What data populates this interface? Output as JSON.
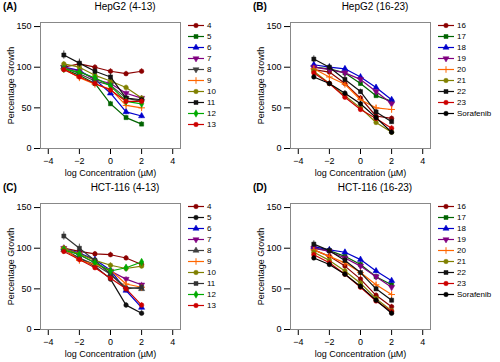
{
  "chart_data": [
    {
      "type": "line",
      "title": "HepG2 (4-13)",
      "annotation": "(A)",
      "xlabel": "log Concentration (µM)",
      "ylabel": "Percentage Growth",
      "x": [
        -3,
        -2,
        -1,
        0,
        1,
        2
      ],
      "xlim": [
        -4.5,
        4.5
      ],
      "ylim": [
        0,
        155
      ],
      "xticks": [
        -4,
        -2,
        0,
        2,
        4
      ],
      "yticks": [
        0,
        50,
        100,
        150
      ],
      "legend": "right",
      "series": [
        {
          "name": "4",
          "color": "#8B0000",
          "marker": "circle",
          "values": [
            100,
            104,
            100,
            95,
            92,
            95
          ],
          "yerr": [
            3,
            4,
            3,
            3,
            3,
            3
          ]
        },
        {
          "name": "5",
          "color": "#006400",
          "marker": "square",
          "values": [
            98,
            90,
            80,
            55,
            38,
            30
          ],
          "yerr": [
            3,
            3,
            4,
            3,
            3,
            3
          ]
        },
        {
          "name": "6",
          "color": "#0000CC",
          "marker": "triangle-up",
          "values": [
            100,
            96,
            85,
            68,
            45,
            40
          ],
          "yerr": [
            3,
            3,
            3,
            3,
            3,
            3
          ]
        },
        {
          "name": "7",
          "color": "#800080",
          "marker": "triangle-down",
          "values": [
            100,
            95,
            85,
            80,
            68,
            62
          ],
          "yerr": [
            3,
            3,
            3,
            3,
            3,
            3
          ]
        },
        {
          "name": "8",
          "color": "#404040",
          "marker": "triangle-down",
          "values": [
            100,
            92,
            83,
            78,
            62,
            58
          ],
          "yerr": [
            3,
            3,
            3,
            3,
            3,
            3
          ]
        },
        {
          "name": "9",
          "color": "#FF6600",
          "marker": "plus",
          "values": [
            98,
            87,
            79,
            73,
            53,
            50
          ],
          "yerr": [
            3,
            3,
            3,
            3,
            3,
            3
          ]
        },
        {
          "name": "10",
          "color": "#808000",
          "marker": "circle",
          "values": [
            104,
            100,
            90,
            83,
            75,
            62
          ],
          "yerr": [
            3,
            3,
            3,
            3,
            3,
            3
          ]
        },
        {
          "name": "11",
          "color": "#111111",
          "marker": "square",
          "values": [
            115,
            105,
            95,
            88,
            62,
            60
          ],
          "yerr": [
            5,
            5,
            4,
            4,
            3,
            3
          ]
        },
        {
          "name": "12",
          "color": "#00AA00",
          "marker": "diamond",
          "values": [
            98,
            94,
            87,
            77,
            58,
            55
          ],
          "yerr": [
            3,
            3,
            3,
            3,
            3,
            3
          ]
        },
        {
          "name": "13",
          "color": "#CC0000",
          "marker": "circle",
          "values": [
            97,
            88,
            80,
            72,
            58,
            58
          ],
          "yerr": [
            3,
            3,
            3,
            3,
            3,
            3
          ]
        }
      ]
    },
    {
      "type": "line",
      "title": "HepG2 (16-23)",
      "annotation": "(B)",
      "xlabel": "log Concentration (µM)",
      "ylabel": "Percentage Growth",
      "x": [
        -3,
        -2,
        -1,
        0,
        1,
        2
      ],
      "xlim": [
        -4.5,
        4.5
      ],
      "ylim": [
        0,
        155
      ],
      "xticks": [
        -4,
        -2,
        0,
        2,
        4
      ],
      "yticks": [
        0,
        50,
        100,
        150
      ],
      "legend": "right",
      "series": [
        {
          "name": "16",
          "color": "#8B0000",
          "marker": "circle",
          "values": [
            97,
            94,
            80,
            62,
            40,
            37
          ],
          "yerr": [
            3,
            3,
            3,
            3,
            3,
            3
          ]
        },
        {
          "name": "17",
          "color": "#006400",
          "marker": "square",
          "values": [
            100,
            98,
            93,
            80,
            65,
            58
          ],
          "yerr": [
            3,
            3,
            3,
            3,
            3,
            3
          ]
        },
        {
          "name": "18",
          "color": "#0000CC",
          "marker": "triangle-up",
          "values": [
            103,
            100,
            98,
            88,
            75,
            60
          ],
          "yerr": [
            3,
            3,
            3,
            3,
            3,
            3
          ]
        },
        {
          "name": "19",
          "color": "#800080",
          "marker": "triangle-down",
          "values": [
            100,
            97,
            93,
            85,
            70,
            55
          ],
          "yerr": [
            3,
            3,
            3,
            3,
            3,
            3
          ]
        },
        {
          "name": "20",
          "color": "#FF6600",
          "marker": "plus",
          "values": [
            98,
            88,
            79,
            60,
            50,
            48
          ],
          "yerr": [
            3,
            3,
            3,
            3,
            3,
            3
          ]
        },
        {
          "name": "21",
          "color": "#808000",
          "marker": "circle",
          "values": [
            95,
            80,
            65,
            50,
            32,
            20
          ],
          "yerr": [
            3,
            3,
            3,
            3,
            3,
            3
          ]
        },
        {
          "name": "22",
          "color": "#111111",
          "marker": "square",
          "values": [
            110,
            100,
            85,
            70,
            45,
            33
          ],
          "yerr": [
            4,
            4,
            4,
            3,
            3,
            3
          ]
        },
        {
          "name": "23",
          "color": "#CC0000",
          "marker": "circle",
          "values": [
            93,
            80,
            63,
            48,
            37,
            25
          ],
          "yerr": [
            3,
            3,
            3,
            3,
            3,
            3
          ]
        },
        {
          "name": "Sorafenib",
          "color": "#000000",
          "marker": "circle",
          "values": [
            88,
            80,
            68,
            55,
            38,
            20
          ],
          "yerr": [
            3,
            3,
            3,
            3,
            3,
            3
          ]
        }
      ]
    },
    {
      "type": "line",
      "title": "HCT-116 (4-13)",
      "annotation": "(C)",
      "xlabel": "log Concentration (µM)",
      "ylabel": "Percentage Growth",
      "x": [
        -3,
        -2,
        -1,
        0,
        1,
        2
      ],
      "xlim": [
        -4.5,
        4.5
      ],
      "ylim": [
        0,
        155
      ],
      "xticks": [
        -4,
        -2,
        0,
        2,
        4
      ],
      "yticks": [
        0,
        50,
        100,
        150
      ],
      "legend": "right",
      "series": [
        {
          "name": "4",
          "color": "#8B0000",
          "marker": "circle",
          "values": [
            100,
            96,
            93,
            92,
            88,
            80
          ],
          "yerr": [
            3,
            3,
            3,
            3,
            3,
            3
          ]
        },
        {
          "name": "5",
          "color": "#111111",
          "marker": "circle",
          "values": [
            98,
            88,
            78,
            62,
            30,
            20
          ],
          "yerr": [
            3,
            3,
            3,
            3,
            3,
            3
          ]
        },
        {
          "name": "6",
          "color": "#0000CC",
          "marker": "triangle-up",
          "values": [
            100,
            94,
            86,
            73,
            48,
            27
          ],
          "yerr": [
            3,
            3,
            3,
            3,
            3,
            3
          ]
        },
        {
          "name": "7",
          "color": "#800080",
          "marker": "triangle-down",
          "values": [
            100,
            92,
            82,
            72,
            62,
            55
          ],
          "yerr": [
            3,
            3,
            3,
            3,
            3,
            3
          ]
        },
        {
          "name": "8",
          "color": "#404040",
          "marker": "triangle-up",
          "values": [
            98,
            88,
            80,
            68,
            52,
            50
          ],
          "yerr": [
            3,
            3,
            3,
            3,
            3,
            3
          ]
        },
        {
          "name": "9",
          "color": "#FF6600",
          "marker": "plus",
          "values": [
            100,
            85,
            80,
            73,
            56,
            52
          ],
          "yerr": [
            3,
            3,
            3,
            3,
            3,
            3
          ]
        },
        {
          "name": "10",
          "color": "#808000",
          "marker": "circle",
          "values": [
            100,
            93,
            85,
            79,
            75,
            78
          ],
          "yerr": [
            3,
            3,
            3,
            3,
            3,
            3
          ]
        },
        {
          "name": "11",
          "color": "#333333",
          "marker": "square",
          "values": [
            115,
            100,
            85,
            68,
            50,
            52
          ],
          "yerr": [
            5,
            5,
            4,
            4,
            3,
            3
          ]
        },
        {
          "name": "12",
          "color": "#00AA00",
          "marker": "diamond",
          "values": [
            98,
            92,
            82,
            72,
            76,
            83
          ],
          "yerr": [
            3,
            3,
            3,
            3,
            3,
            3
          ]
        },
        {
          "name": "13",
          "color": "#CC0000",
          "marker": "circle",
          "values": [
            96,
            86,
            76,
            63,
            50,
            30
          ],
          "yerr": [
            3,
            3,
            3,
            3,
            3,
            3
          ]
        }
      ]
    },
    {
      "type": "line",
      "title": "HCT-116 (16-23)",
      "annotation": "(D)",
      "xlabel": "log Concentration (µM)",
      "ylabel": "Percentage Growth",
      "x": [
        -3,
        -2,
        -1,
        0,
        1,
        2
      ],
      "xlim": [
        -4.5,
        4.5
      ],
      "ylim": [
        0,
        155
      ],
      "xticks": [
        -4,
        -2,
        0,
        2,
        4
      ],
      "yticks": [
        0,
        50,
        100,
        150
      ],
      "legend": "right",
      "series": [
        {
          "name": "16",
          "color": "#8B0000",
          "marker": "circle",
          "values": [
            98,
            90,
            78,
            62,
            42,
            28
          ],
          "yerr": [
            3,
            3,
            3,
            3,
            3,
            3
          ]
        },
        {
          "name": "17",
          "color": "#006400",
          "marker": "square",
          "values": [
            100,
            97,
            90,
            80,
            65,
            55
          ],
          "yerr": [
            3,
            3,
            3,
            3,
            3,
            3
          ]
        },
        {
          "name": "18",
          "color": "#0000CC",
          "marker": "triangle-up",
          "values": [
            102,
            98,
            95,
            86,
            72,
            60
          ],
          "yerr": [
            3,
            3,
            3,
            3,
            3,
            3
          ]
        },
        {
          "name": "19",
          "color": "#800080",
          "marker": "triangle-down",
          "values": [
            100,
            96,
            88,
            78,
            65,
            52
          ],
          "yerr": [
            3,
            3,
            3,
            3,
            3,
            3
          ]
        },
        {
          "name": "20",
          "color": "#FF6600",
          "marker": "plus",
          "values": [
            98,
            90,
            82,
            70,
            55,
            43
          ],
          "yerr": [
            3,
            3,
            3,
            3,
            3,
            3
          ]
        },
        {
          "name": "21",
          "color": "#808000",
          "marker": "circle",
          "values": [
            95,
            85,
            72,
            57,
            38,
            23
          ],
          "yerr": [
            3,
            3,
            3,
            3,
            3,
            3
          ]
        },
        {
          "name": "22",
          "color": "#111111",
          "marker": "square",
          "values": [
            105,
            97,
            85,
            70,
            50,
            36
          ],
          "yerr": [
            4,
            4,
            4,
            3,
            3,
            3
          ]
        },
        {
          "name": "23",
          "color": "#CC0000",
          "marker": "circle",
          "values": [
            92,
            82,
            68,
            52,
            35,
            22
          ],
          "yerr": [
            3,
            3,
            3,
            3,
            3,
            3
          ]
        },
        {
          "name": "Sorafenib",
          "color": "#000000",
          "marker": "circle",
          "values": [
            88,
            80,
            68,
            53,
            36,
            20
          ],
          "yerr": [
            3,
            3,
            3,
            3,
            3,
            3
          ]
        }
      ]
    }
  ]
}
